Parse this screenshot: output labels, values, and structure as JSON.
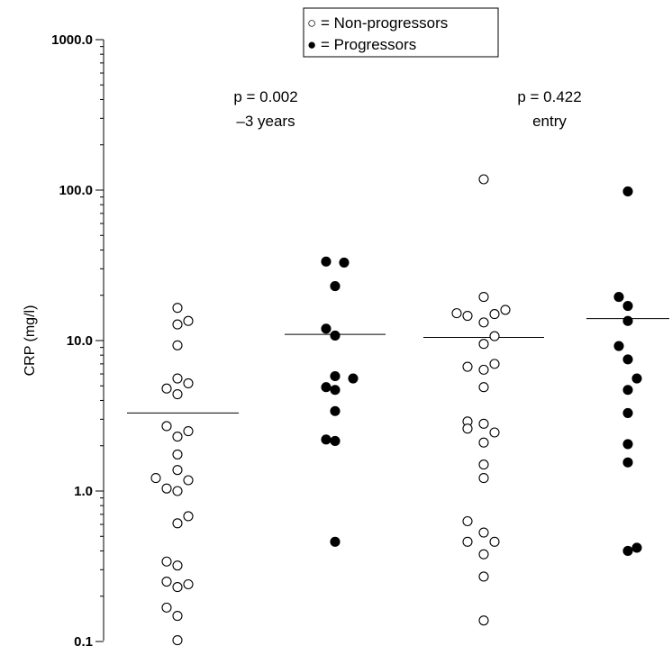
{
  "chart_data": {
    "type": "scatter",
    "scale": "log",
    "ylabel": "CRP (mg/l)",
    "ylim": [
      0.1,
      1000
    ],
    "y_ticks": [
      {
        "value": 1000,
        "label": "1000.0"
      },
      {
        "value": 100,
        "label": "100.0"
      },
      {
        "value": 10,
        "label": "10.0"
      },
      {
        "value": 1,
        "label": "1.0"
      },
      {
        "value": 0.1,
        "label": "0.1"
      }
    ],
    "legend": [
      {
        "marker": "open",
        "label": "○ = Non-progressors"
      },
      {
        "marker": "filled",
        "label": "● = Progressors"
      }
    ],
    "annotations": [
      {
        "line1": "p = 0.002",
        "line2": "–3 years"
      },
      {
        "line1": "p = 0.422",
        "line2": "entry"
      }
    ],
    "groups": [
      {
        "timepoint": "–3 years",
        "status": "Non-progressors",
        "marker": "open",
        "median": 3.3,
        "points": [
          {
            "dx": -0.6,
            "y": 16.5
          },
          {
            "dx": -0.6,
            "y": 12.8
          },
          {
            "dx": 0.6,
            "y": 13.5
          },
          {
            "dx": -0.6,
            "y": 9.3
          },
          {
            "dx": -0.6,
            "y": 5.6
          },
          {
            "dx": 0.6,
            "y": 5.2
          },
          {
            "dx": -1.8,
            "y": 4.8
          },
          {
            "dx": -0.6,
            "y": 4.4
          },
          {
            "dx": -1.8,
            "y": 2.7
          },
          {
            "dx": -0.6,
            "y": 2.3
          },
          {
            "dx": 0.6,
            "y": 2.5
          },
          {
            "dx": -0.6,
            "y": 1.75
          },
          {
            "dx": -0.6,
            "y": 1.38
          },
          {
            "dx": -3.0,
            "y": 1.22
          },
          {
            "dx": 0.6,
            "y": 1.18
          },
          {
            "dx": -1.8,
            "y": 1.04
          },
          {
            "dx": -0.6,
            "y": 1.0
          },
          {
            "dx": 0.6,
            "y": 0.68
          },
          {
            "dx": -0.6,
            "y": 0.61
          },
          {
            "dx": -1.8,
            "y": 0.34
          },
          {
            "dx": -0.6,
            "y": 0.32
          },
          {
            "dx": -1.8,
            "y": 0.25
          },
          {
            "dx": -0.6,
            "y": 0.23
          },
          {
            "dx": 0.6,
            "y": 0.24
          },
          {
            "dx": -1.8,
            "y": 0.168
          },
          {
            "dx": -0.6,
            "y": 0.148
          },
          {
            "dx": -0.6,
            "y": 0.102
          }
        ]
      },
      {
        "timepoint": "–3 years",
        "status": "Progressors",
        "marker": "filled",
        "median": 11.0,
        "points": [
          {
            "dx": -1.0,
            "y": 33.5
          },
          {
            "dx": 1.0,
            "y": 33.0
          },
          {
            "dx": 0,
            "y": 23.0
          },
          {
            "dx": -1.0,
            "y": 12.0
          },
          {
            "dx": 0,
            "y": 10.8
          },
          {
            "dx": 0,
            "y": 5.8
          },
          {
            "dx": 2.0,
            "y": 5.6
          },
          {
            "dx": -1.0,
            "y": 4.9
          },
          {
            "dx": 0,
            "y": 4.7
          },
          {
            "dx": 0,
            "y": 3.4
          },
          {
            "dx": -1.0,
            "y": 2.2
          },
          {
            "dx": 0,
            "y": 2.15
          },
          {
            "dx": 0,
            "y": 0.46
          }
        ]
      },
      {
        "timepoint": "entry",
        "status": "Non-progressors",
        "marker": "open",
        "median": 10.5,
        "points": [
          {
            "dx": 0,
            "y": 118
          },
          {
            "dx": 0,
            "y": 19.5
          },
          {
            "dx": -3.0,
            "y": 15.2
          },
          {
            "dx": -1.8,
            "y": 14.6
          },
          {
            "dx": 1.2,
            "y": 15.0
          },
          {
            "dx": 2.4,
            "y": 16.0
          },
          {
            "dx": 0,
            "y": 13.2
          },
          {
            "dx": 1.2,
            "y": 10.7
          },
          {
            "dx": 0,
            "y": 9.5
          },
          {
            "dx": -1.8,
            "y": 6.7
          },
          {
            "dx": 0,
            "y": 6.4
          },
          {
            "dx": 1.2,
            "y": 7.0
          },
          {
            "dx": 0,
            "y": 4.9
          },
          {
            "dx": -1.8,
            "y": 2.9
          },
          {
            "dx": 0,
            "y": 2.8
          },
          {
            "dx": -1.8,
            "y": 2.6
          },
          {
            "dx": 1.2,
            "y": 2.45
          },
          {
            "dx": 0,
            "y": 2.1
          },
          {
            "dx": 0,
            "y": 1.5
          },
          {
            "dx": 0,
            "y": 1.22
          },
          {
            "dx": -1.8,
            "y": 0.63
          },
          {
            "dx": 0,
            "y": 0.53
          },
          {
            "dx": -1.8,
            "y": 0.46
          },
          {
            "dx": 1.2,
            "y": 0.46
          },
          {
            "dx": 0,
            "y": 0.38
          },
          {
            "dx": 0,
            "y": 0.27
          },
          {
            "dx": 0,
            "y": 0.138
          }
        ]
      },
      {
        "timepoint": "entry",
        "status": "Progressors",
        "marker": "filled",
        "median": 14.0,
        "points": [
          {
            "dx": 0,
            "y": 98
          },
          {
            "dx": -1.0,
            "y": 19.5
          },
          {
            "dx": 0,
            "y": 17.0
          },
          {
            "dx": 0,
            "y": 13.5
          },
          {
            "dx": -1.0,
            "y": 9.2
          },
          {
            "dx": 0,
            "y": 7.5
          },
          {
            "dx": 1.0,
            "y": 5.6
          },
          {
            "dx": 0,
            "y": 4.7
          },
          {
            "dx": 0,
            "y": 3.3
          },
          {
            "dx": 0,
            "y": 2.05
          },
          {
            "dx": 0,
            "y": 1.55
          },
          {
            "dx": 0,
            "y": 0.4
          },
          {
            "dx": 1.0,
            "y": 0.42
          }
        ]
      }
    ]
  }
}
